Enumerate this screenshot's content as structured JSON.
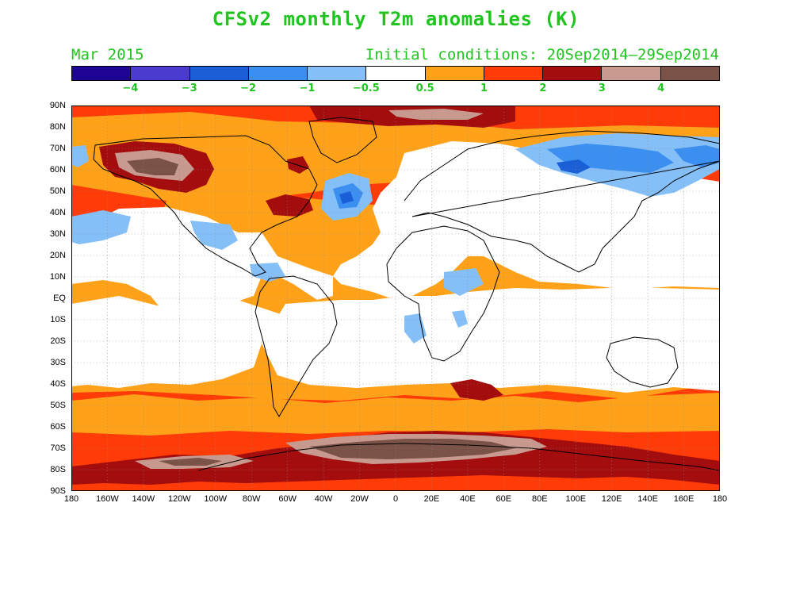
{
  "title": "CFSv2 monthly T2m anomalies (K)",
  "month": "Mar 2015",
  "initial_conditions": "Initial conditions: 20Sep2014–29Sep2014",
  "colorbar": {
    "colors": [
      "#1e0594",
      "#4b3bcf",
      "#1a5fd6",
      "#3b8ff0",
      "#85bff7",
      "#ffffff",
      "#ffa21a",
      "#ff3c08",
      "#a30d0d",
      "#c89a8f",
      "#7a5247"
    ],
    "labels": [
      "−4",
      "−3",
      "−2",
      "−1",
      "−0.5",
      "0.5",
      "1",
      "2",
      "3",
      "4"
    ]
  },
  "y_ticks": [
    "90N",
    "80N",
    "70N",
    "60N",
    "50N",
    "40N",
    "30N",
    "20N",
    "10N",
    "EQ",
    "10S",
    "20S",
    "30S",
    "40S",
    "50S",
    "60S",
    "70S",
    "80S",
    "90S"
  ],
  "x_ticks": [
    "180",
    "160W",
    "140W",
    "120W",
    "100W",
    "80W",
    "60W",
    "40W",
    "20W",
    "0",
    "20E",
    "40E",
    "60E",
    "80E",
    "100E",
    "120E",
    "140E",
    "160E",
    "180"
  ]
}
